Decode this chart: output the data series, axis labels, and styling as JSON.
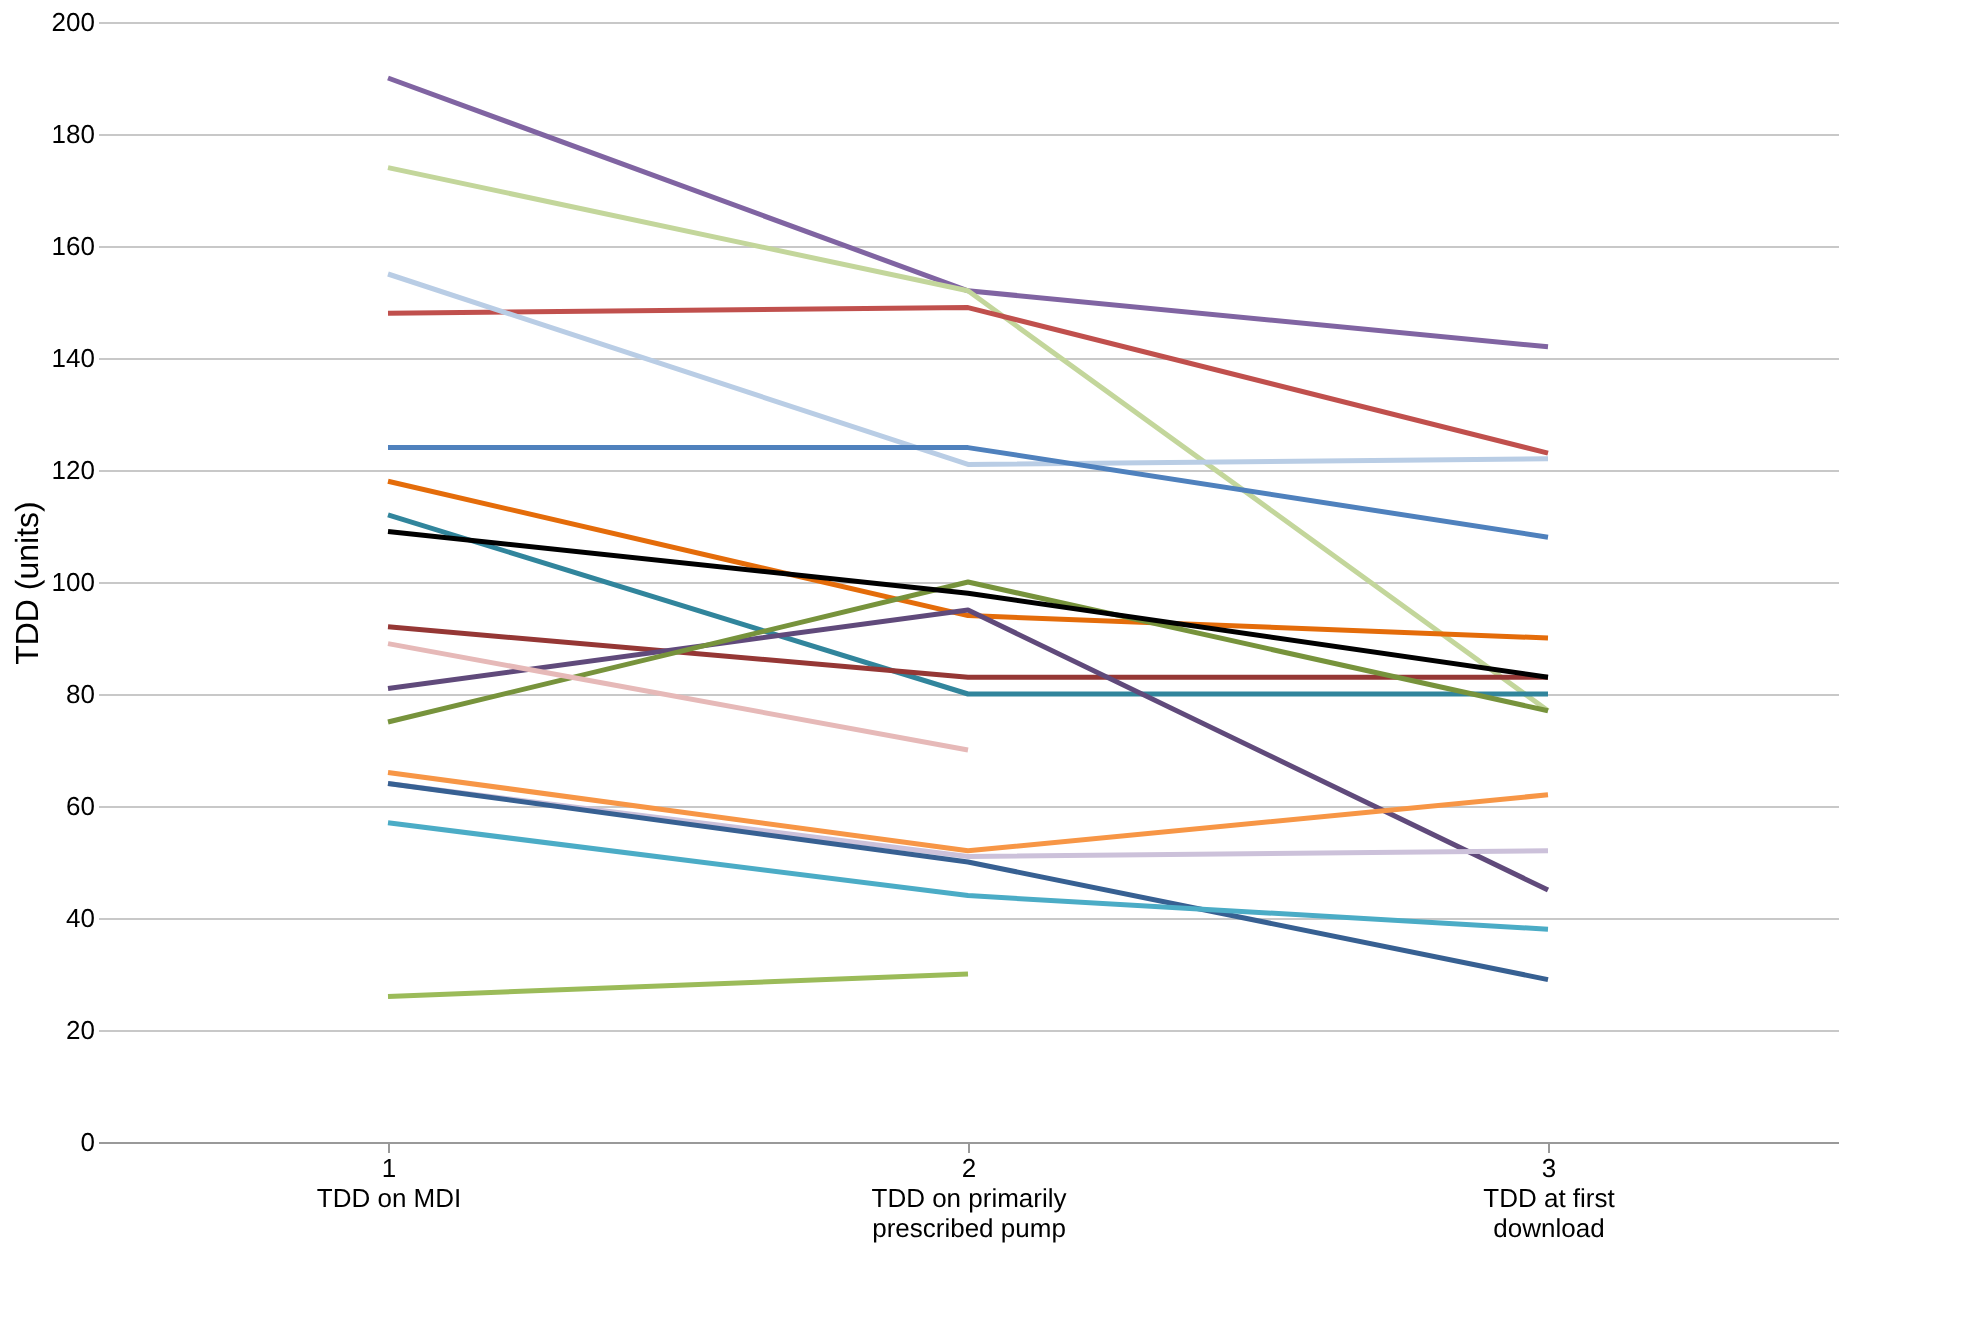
{
  "chart_data": {
    "type": "line",
    "ylabel": "TDD (units)",
    "categories": [
      "1\nTDD on MDI",
      "2\nTDD on primarily\nprescribed pump",
      "3\nTDD at first\ndownload"
    ],
    "ylim": [
      0,
      200
    ],
    "yticks": [
      0,
      20,
      40,
      60,
      80,
      100,
      120,
      140,
      160,
      180,
      200
    ],
    "grid": "y",
    "legend": false,
    "marker": "none",
    "series": [
      {
        "color": "#8064a2",
        "values": [
          190,
          152,
          142
        ]
      },
      {
        "color": "#c3d69b",
        "values": [
          174,
          152,
          77
        ]
      },
      {
        "color": "#c0504d",
        "values": [
          148,
          149,
          123
        ]
      },
      {
        "color": "#b9cde5",
        "values": [
          155,
          121,
          122
        ]
      },
      {
        "color": "#4f81bd",
        "values": [
          124,
          124,
          108
        ]
      },
      {
        "color": "#e46c0a",
        "values": [
          118,
          94,
          90
        ]
      },
      {
        "color": "#31859c",
        "values": [
          112,
          80,
          80
        ]
      },
      {
        "color": "#953735",
        "values": [
          92,
          83,
          83
        ]
      },
      {
        "color": "#604a7b",
        "values": [
          81,
          95,
          45
        ]
      },
      {
        "color": "#77933c",
        "values": [
          75,
          100,
          77
        ]
      },
      {
        "color": "#e6b9b8",
        "values": [
          89,
          70,
          null
        ]
      },
      {
        "color": "#f79646",
        "values": [
          66,
          52,
          62
        ]
      },
      {
        "color": "#ccc1da",
        "values": [
          64,
          51,
          52
        ]
      },
      {
        "color": "#376092",
        "values": [
          64,
          50,
          29
        ]
      },
      {
        "color": "#4bacc6",
        "values": [
          57,
          44,
          38
        ]
      },
      {
        "color": "#9bbb59",
        "values": [
          26,
          30,
          null
        ]
      },
      {
        "color": "#000000",
        "values": [
          109,
          98,
          83
        ]
      }
    ]
  }
}
